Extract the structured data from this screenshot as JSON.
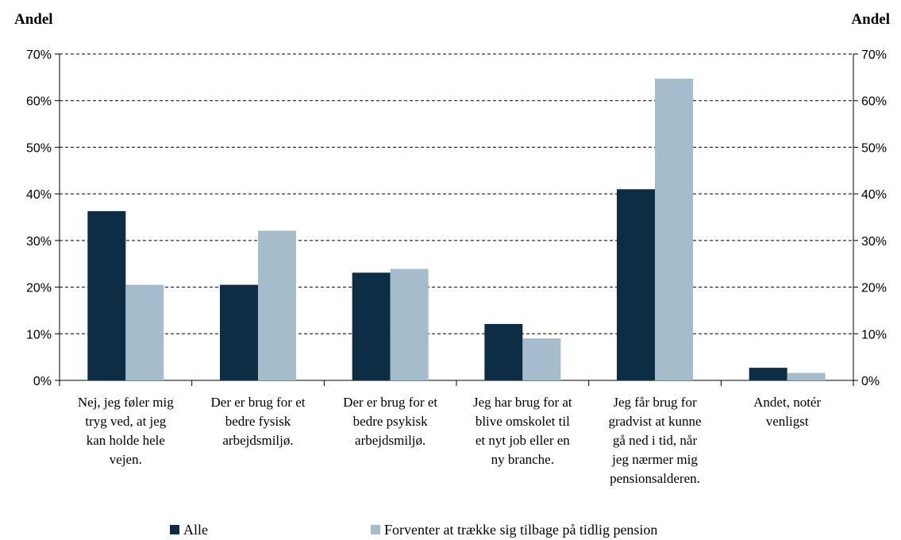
{
  "chart_data": {
    "type": "bar",
    "ylabel_left": "Andel",
    "ylabel_right": "Andel",
    "ylim": [
      0,
      70
    ],
    "yticks": [
      "0%",
      "10%",
      "20%",
      "30%",
      "40%",
      "50%",
      "60%",
      "70%"
    ],
    "grid": true,
    "legend_position": "bottom",
    "categories": [
      "Nej, jeg føler mig\ntryg ved, at jeg\nkan holde hele\nvejen.",
      "Der er brug for et\nbedre fysisk\narbejdsmiljø.",
      "Der er brug for et\nbedre psykisk\narbejdsmiljø.",
      "Jeg har brug for at\nblive omskolet til\net nyt job eller en\nny branche.",
      "Jeg får brug for\ngradvist at kunne\ngå ned i tid, når\njeg nærmer mig\npensionsalderen.",
      "Andet, notér\nvenligst"
    ],
    "series": [
      {
        "name": "Alle",
        "color": "#0d2d45",
        "values": [
          36.3,
          20.5,
          23.1,
          12.1,
          41.0,
          2.7
        ]
      },
      {
        "name": "Forventer at trække sig tilbage på tidlig pension",
        "color": "#a4bccc",
        "values": [
          20.5,
          32.1,
          23.9,
          9.0,
          64.7,
          1.6
        ]
      }
    ]
  }
}
